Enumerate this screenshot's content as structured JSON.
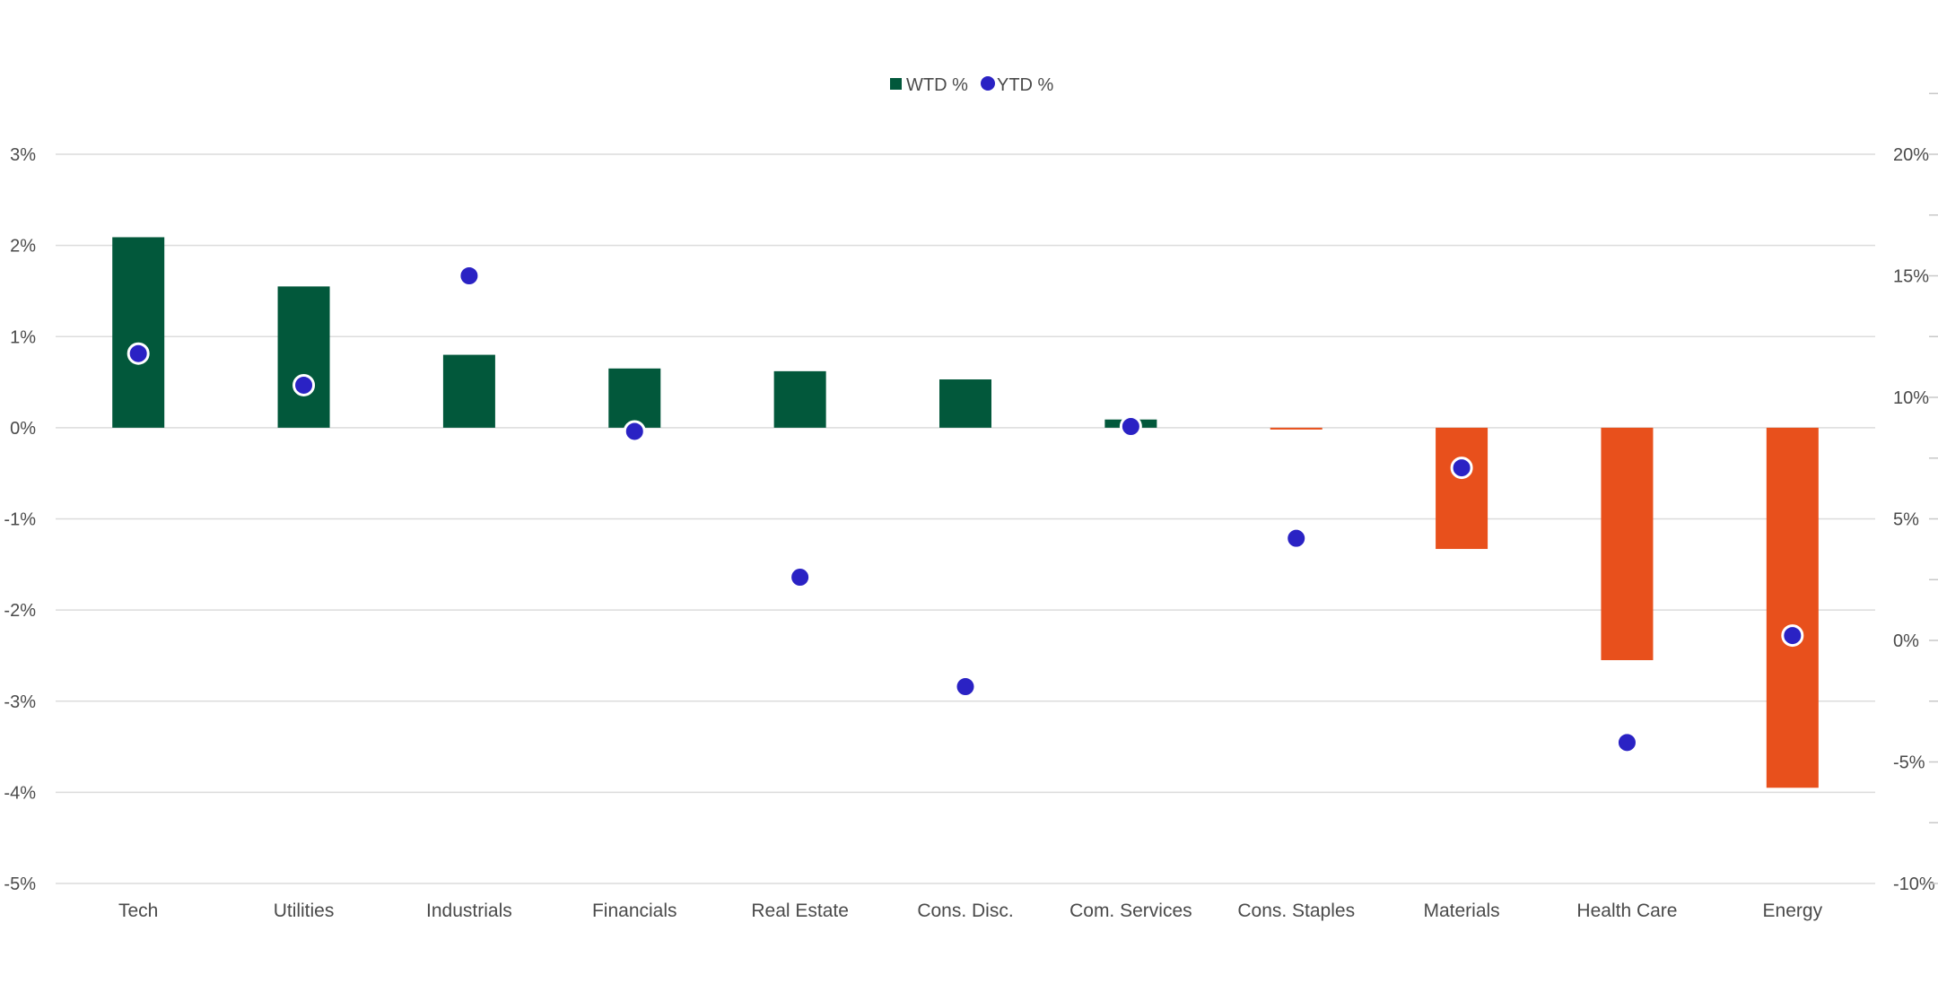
{
  "chart_data": {
    "type": "bar",
    "categories": [
      "Tech",
      "Utilities",
      "Industrials",
      "Financials",
      "Real Estate",
      "Cons. Disc.",
      "Com. Services",
      "Cons. Staples",
      "Materials",
      "Health Care",
      "Energy"
    ],
    "series": [
      {
        "name": "WTD %",
        "type": "bar",
        "axis": "left",
        "values": [
          2.09,
          1.55,
          0.8,
          0.65,
          0.62,
          0.53,
          0.09,
          -0.02,
          -1.33,
          -2.55,
          -3.95
        ]
      },
      {
        "name": "YTD %",
        "type": "scatter",
        "axis": "right",
        "values": [
          11.8,
          10.5,
          15.0,
          8.6,
          2.6,
          -1.9,
          8.8,
          4.2,
          7.1,
          -4.2,
          0.2
        ]
      }
    ],
    "y_left": {
      "ylim": [
        -5,
        3
      ],
      "ticks": [
        "3%",
        "2%",
        "1%",
        "0%",
        "-1%",
        "-2%",
        "-3%",
        "-4%",
        "-5%"
      ]
    },
    "y_right": {
      "ylim": [
        -10,
        20
      ],
      "ticks": [
        "20%",
        "15%",
        "10%",
        "5%",
        "0%",
        "-5%",
        "-10%"
      ]
    },
    "legend": [
      {
        "label": "WTD %",
        "marker": "square",
        "color": "#02583b"
      },
      {
        "label": "YTD %",
        "marker": "circle",
        "color": "#2a22c4"
      }
    ],
    "legend_position": "top-center",
    "colors": {
      "positive_bar": "#02583b",
      "negative_bar": "#e8501c",
      "dot": "#2a22c4",
      "dot_outline": "#ffffff",
      "grid": "#dcdcdc"
    },
    "grid": true,
    "title": "",
    "xlabel": "",
    "ylabel": ""
  }
}
